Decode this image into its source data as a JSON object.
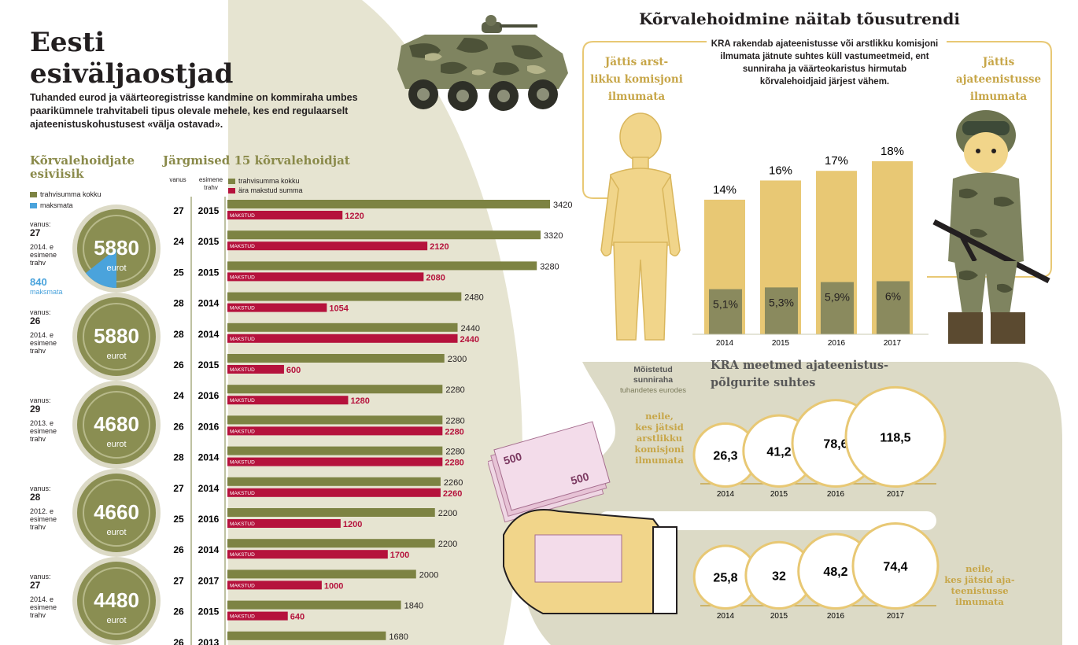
{
  "title_line1": "Eesti",
  "title_line2": "esiväljaostjad",
  "intro": "Tuhanded eurod ja väärteoregistrisse kandmine on kommiraha umbes paarikümnele trahvitabeli tipus olevale mehele, kes end regulaarselt ajateenistuskohustusest «välja ostavad».",
  "top5": {
    "heading": "Kõrvalehoidjate esiviisik",
    "legend_total": "trahvisumma kokku",
    "legend_unpaid": "maksmata",
    "age_label": "vanus:",
    "first_fine_suffix": ". e esimene trahv",
    "currency": "eurot",
    "unpaid_label": "maksmata",
    "items": [
      {
        "age": "27",
        "year": "2014",
        "amount": "5880",
        "unpaid": "840"
      },
      {
        "age": "26",
        "year": "2014",
        "amount": "5880"
      },
      {
        "age": "29",
        "year": "2013",
        "amount": "4680"
      },
      {
        "age": "28",
        "year": "2012",
        "amount": "4660"
      },
      {
        "age": "27",
        "year": "2014",
        "amount": "4480"
      }
    ]
  },
  "next15": {
    "heading": "Järgmised 15 kõrvalehoidjat",
    "col_age": "vanus",
    "col_first_fine": "esimene trahv",
    "legend_total": "trahvisumma kokku",
    "legend_paid": "ära makstud summa",
    "paid_tag": "MAKSTUD"
  },
  "chart_data": [
    {
      "type": "bar",
      "title": "Järgmised 15 kõrvalehoidjat",
      "series_names": [
        "trahvisumma kokku",
        "ära makstud summa"
      ],
      "rows": [
        {
          "age": 27,
          "first_fine": 2015,
          "total": 3420,
          "paid": 1220
        },
        {
          "age": 24,
          "first_fine": 2015,
          "total": 3320,
          "paid": 2120
        },
        {
          "age": 25,
          "first_fine": 2015,
          "total": 3280,
          "paid": 2080
        },
        {
          "age": 28,
          "first_fine": 2014,
          "total": 2480,
          "paid": 1054
        },
        {
          "age": 28,
          "first_fine": 2014,
          "total": 2440,
          "paid": 2440
        },
        {
          "age": 26,
          "first_fine": 2015,
          "total": 2300,
          "paid": 600
        },
        {
          "age": 24,
          "first_fine": 2016,
          "total": 2280,
          "paid": 1280
        },
        {
          "age": 26,
          "first_fine": 2016,
          "total": 2280,
          "paid": 2280
        },
        {
          "age": 28,
          "first_fine": 2014,
          "total": 2280,
          "paid": 2280
        },
        {
          "age": 27,
          "first_fine": 2014,
          "total": 2260,
          "paid": 2260
        },
        {
          "age": 25,
          "first_fine": 2016,
          "total": 2200,
          "paid": 1200
        },
        {
          "age": 26,
          "first_fine": 2014,
          "total": 2200,
          "paid": 1700
        },
        {
          "age": 27,
          "first_fine": 2017,
          "total": 2000,
          "paid": 1000
        },
        {
          "age": 26,
          "first_fine": 2015,
          "total": 1840,
          "paid": 640
        },
        {
          "age": 26,
          "first_fine": 2013,
          "total": 1680
        }
      ],
      "colors": {
        "total": "#7d8343",
        "paid": "#b5123c"
      }
    },
    {
      "type": "bar",
      "title": "Kõrvalehoidmine näitab tõusutrendi",
      "categories": [
        "2014",
        "2015",
        "2016",
        "2017"
      ],
      "series": [
        {
          "name": "Jättis ajateenistusse ilmumata",
          "values": [
            14,
            16,
            17,
            18
          ],
          "labels": [
            "14%",
            "16%",
            "17%",
            "18%"
          ]
        },
        {
          "name": "Jättis arstlikku komisjoni ilmumata",
          "values": [
            5.1,
            5.3,
            5.9,
            6
          ],
          "labels": [
            "5,1%",
            "5,3%",
            "5,9%",
            "6%"
          ]
        }
      ],
      "colors": [
        "#e8c874",
        "#8a8a5e"
      ]
    },
    {
      "type": "scatter",
      "title": "KRA meetmed ajateenistuspõlgurite suhtes",
      "subtitle": "Mõistetud sunniraha tuhandetes eurodes",
      "categories": [
        "2014",
        "2015",
        "2016",
        "2017"
      ],
      "series": [
        {
          "name": "neile, kes jätsid arstlikku komisjoni ilmumata",
          "values": [
            26.3,
            41.2,
            78.6,
            118.5
          ],
          "labels": [
            "26,3",
            "41,2",
            "78,6",
            "118,5"
          ]
        },
        {
          "name": "neile, kes jätsid ajateenistusse ilmumata",
          "values": [
            25.8,
            32,
            48.2,
            74.4
          ],
          "labels": [
            "25,8",
            "32",
            "48,2",
            "74,4"
          ]
        }
      ]
    }
  ],
  "trend": {
    "title": "Kõrvalehoidmine näitab tõusutrendi",
    "note": "KRA rakendab ajateenistusse või arstlikku komisjoni ilmumata jätnute suhtes küll vastumeetmeid, ent sunniraha ja väärteokaristus hirmutab kõrvalehoidjaid järjest vähem.",
    "left_label": [
      "Jättis arst-",
      "likku komisjoni",
      "ilmumata"
    ],
    "right_label": [
      "Jättis",
      "ajateenistusse",
      "ilmumata"
    ]
  },
  "kra": {
    "heading": [
      "KRA meetmed ajateenistus-",
      "põlgurite suhtes"
    ],
    "sub_bold": [
      "Mõistetud",
      "sunniraha"
    ],
    "sub_light": "tuhandetes eurodes",
    "who_medical": [
      "neile,",
      "kes jätsid",
      "arstlikku",
      "komisjoni",
      "ilmumata"
    ],
    "who_service": [
      "neile,",
      "kes jätsid aja-",
      "teenistusse",
      "ilmumata"
    ]
  },
  "colors": {
    "olive": "#7d8343",
    "crimson": "#b5123c",
    "gold_light": "#e8c874",
    "gold_text": "#c7a648",
    "band": "#dcdac6",
    "unpaid_blue": "#4aa3dc"
  }
}
